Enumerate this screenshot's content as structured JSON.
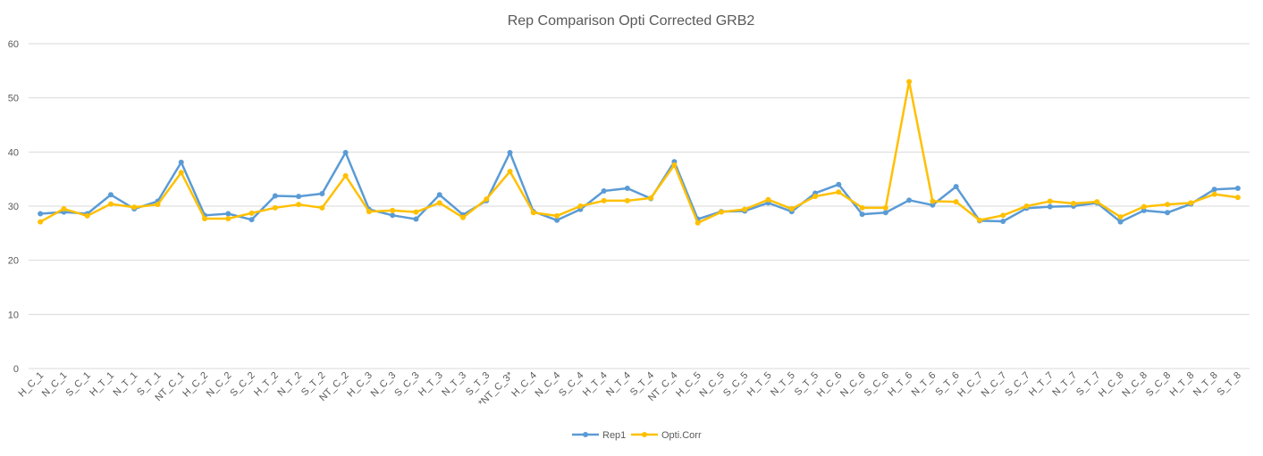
{
  "chart_data": {
    "type": "line",
    "title": "Rep Comparison Opti Corrected GRB2",
    "xlabel": "",
    "ylabel": "",
    "ylim": [
      0,
      60
    ],
    "yticks": [
      0,
      10,
      20,
      30,
      40,
      50,
      60
    ],
    "grid": true,
    "legend_position": "bottom",
    "categories": [
      "H_C_1",
      "N_C_1",
      "S_C_1",
      "H_T_1",
      "N_T_1",
      "S_T_1",
      "NT_C_1",
      "H_C_2",
      "N_C_2",
      "S_C_2",
      "H_T_2",
      "N_T_2",
      "S_T_2",
      "NT_C_2",
      "H_C_3",
      "N_C_3",
      "S_C_3",
      "H_T_3",
      "N_T_3",
      "S_T_3",
      "*NT_C_3*",
      "H_C_4",
      "N_C_4",
      "S_C_4",
      "H_T_4",
      "N_T_4",
      "S_T_4",
      "NT_C_4",
      "H_C_5",
      "N_C_5",
      "S_C_5",
      "H_T_5",
      "N_T_5",
      "S_T_5",
      "H_C_6",
      "N_C_6",
      "S_C_6",
      "H_T_6",
      "N_T_6",
      "S_T_6",
      "H_C_7",
      "N_C_7",
      "S_C_7",
      "H_T_7",
      "N_T_7",
      "S_T_7",
      "H_C_8",
      "N_C_8",
      "S_C_8",
      "H_T_8",
      "N_T_8",
      "S_T_8"
    ],
    "series": [
      {
        "name": "Rep1",
        "color": "#5B9BD5",
        "values": [
          28.6,
          28.9,
          28.6,
          32.1,
          29.5,
          30.9,
          38.1,
          28.3,
          28.6,
          27.5,
          31.9,
          31.8,
          32.3,
          39.9,
          29.4,
          28.3,
          27.6,
          32.1,
          28.4,
          31.0,
          39.9,
          29.0,
          27.4,
          29.4,
          32.8,
          33.3,
          31.4,
          38.2,
          27.6,
          29.0,
          29.1,
          30.6,
          29.0,
          32.4,
          34.0,
          28.5,
          28.8,
          31.1,
          30.2,
          33.6,
          27.3,
          27.2,
          29.6,
          29.9,
          30.0,
          30.6,
          27.1,
          29.2,
          28.8,
          30.4,
          33.1,
          33.3
        ]
      },
      {
        "name": "Opti.Corr",
        "color": "#FFC000",
        "values": [
          27.1,
          29.5,
          28.2,
          30.4,
          29.8,
          30.3,
          36.2,
          27.7,
          27.7,
          28.7,
          29.7,
          30.3,
          29.7,
          35.6,
          29.0,
          29.2,
          28.9,
          30.6,
          27.9,
          31.3,
          36.4,
          28.8,
          28.2,
          30.0,
          31.0,
          31.0,
          31.5,
          37.6,
          26.9,
          28.9,
          29.4,
          31.2,
          29.5,
          31.8,
          32.6,
          29.7,
          29.7,
          53.0,
          30.9,
          30.8,
          27.4,
          28.3,
          30.0,
          30.9,
          30.5,
          30.8,
          28.0,
          29.9,
          30.3,
          30.6,
          32.2,
          31.6
        ]
      }
    ]
  }
}
